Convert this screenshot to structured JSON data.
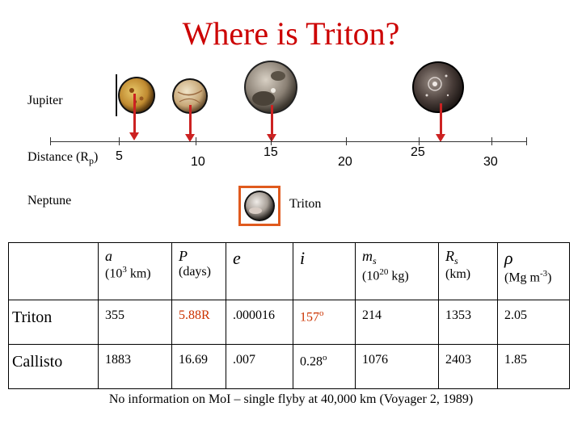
{
  "title": "Where is Triton?",
  "labels": {
    "jupiter": "Jupiter",
    "distance_prefix": "Distance (R",
    "distance_sub": "p",
    "distance_suffix": ")",
    "neptune": "Neptune",
    "triton": "Triton"
  },
  "axis": {
    "tick_values": [
      "5",
      "10",
      "15",
      "20",
      "25",
      "30"
    ]
  },
  "colors": {
    "title": "#cc0000",
    "arrow": "#cc2222",
    "highlight_box": "#e05a1e",
    "highlight_value": "#cc3300"
  },
  "table": {
    "headers": [
      {
        "symbol": "",
        "unit": ""
      },
      {
        "symbol": "a",
        "unit_pre": "(10",
        "unit_sup": "3",
        "unit_post": " km)"
      },
      {
        "symbol": "P",
        "unit_pre": "(days)",
        "unit_sup": "",
        "unit_post": ""
      },
      {
        "symbol": "e",
        "unit_pre": "",
        "unit_sup": "",
        "unit_post": ""
      },
      {
        "symbol": "i",
        "unit_pre": "",
        "unit_sup": "",
        "unit_post": ""
      },
      {
        "symbol": "m",
        "symbol_sub": "s",
        "unit_pre": "(10",
        "unit_sup": "20",
        "unit_post": " kg)"
      },
      {
        "symbol": "R",
        "symbol_sub": "s",
        "unit_pre": "(km)",
        "unit_sup": "",
        "unit_post": ""
      },
      {
        "symbol": "ρ",
        "unit_pre": "(Mg m",
        "unit_sup": "-3",
        "unit_post": ")"
      }
    ],
    "rows": [
      {
        "name": "Triton",
        "a": "355",
        "P": "5.88R",
        "e": ".000016",
        "i": "157",
        "i_sup": "o",
        "ms": "214",
        "Rs": "1353",
        "rho": "2.05"
      },
      {
        "name": "Callisto",
        "a": "1883",
        "P": "16.69",
        "e": ".007",
        "i": "0.28",
        "i_sup": "o",
        "ms": "1076",
        "Rs": "2403",
        "rho": "1.85"
      }
    ]
  },
  "footnote": "No information on MoI – single flyby at 40,000 km (Voyager 2, 1989)"
}
